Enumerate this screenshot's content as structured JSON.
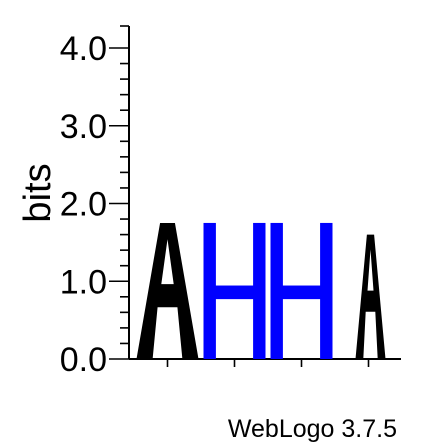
{
  "chart_data": {
    "type": "sequence-logo",
    "ylabel": "bits",
    "ylim": [
      0,
      4.0
    ],
    "yticks": [
      "0.0",
      "1.0",
      "2.0",
      "3.0",
      "4.0"
    ],
    "minor_tick_step": 0.2,
    "positions": [
      {
        "index": 1,
        "letters": [
          {
            "char": "A",
            "bits": 1.75,
            "color": "#000000"
          }
        ]
      },
      {
        "index": 2,
        "letters": [
          {
            "char": "H",
            "bits": 1.75,
            "color": "#0000ff"
          }
        ]
      },
      {
        "index": 3,
        "letters": [
          {
            "char": "H",
            "bits": 1.75,
            "color": "#0000ff"
          }
        ]
      },
      {
        "index": 4,
        "letters": [
          {
            "char": "A",
            "bits": 1.6,
            "color": "#000000"
          }
        ]
      }
    ],
    "footer": "WebLogo 3.7.5"
  }
}
